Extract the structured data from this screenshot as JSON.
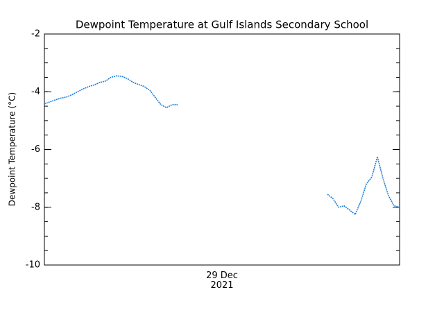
{
  "chart_data": {
    "type": "line",
    "title": "Dewpoint Temperature at Gulf Islands Secondary School",
    "y_label": "Dewpoint Temperature (°C)",
    "categories": [
      null,
      null,
      null,
      null,
      null,
      null,
      null,
      null,
      null,
      null,
      null,
      null,
      null,
      null,
      null,
      null,
      null,
      null,
      null,
      null,
      null,
      null,
      null,
      null,
      null,
      null,
      null,
      null,
      null,
      null,
      null,
      null,
      "29 Dec 2021",
      null,
      null,
      null,
      null,
      null,
      null,
      null,
      null,
      null,
      null,
      null,
      null,
      null,
      null,
      null,
      null,
      null,
      null,
      null,
      null,
      null,
      null,
      null,
      null,
      null,
      null,
      null,
      null,
      null,
      null,
      null,
      null
    ],
    "series": [
      {
        "name": "Dewpoint",
        "color": "#1a7fe0",
        "values": [
          -4.42,
          -4.35,
          -4.28,
          -4.22,
          -4.18,
          -4.1,
          -4.0,
          -3.9,
          -3.82,
          -3.76,
          -3.68,
          -3.63,
          -3.5,
          -3.45,
          -3.47,
          -3.55,
          -3.68,
          -3.75,
          -3.82,
          -3.95,
          -4.2,
          -4.45,
          -4.55,
          -4.45,
          -4.45,
          null,
          null,
          null,
          null,
          null,
          null,
          null,
          null,
          null,
          null,
          null,
          null,
          null,
          null,
          null,
          null,
          null,
          null,
          null,
          null,
          null,
          null,
          null,
          null,
          null,
          null,
          -7.55,
          -7.7,
          -8.0,
          -7.95,
          -8.1,
          -8.25,
          -7.8,
          -7.2,
          -6.95,
          -6.25,
          -7.0,
          -7.6,
          -7.95,
          -8.0
        ]
      }
    ],
    "ylim": [
      -10,
      -2
    ],
    "yticks": [
      -10,
      -8,
      -6,
      -4,
      -2
    ]
  }
}
